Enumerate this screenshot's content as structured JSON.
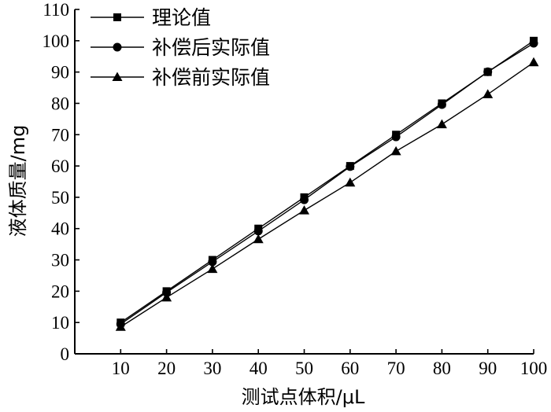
{
  "chart_data": {
    "type": "line",
    "x": [
      10,
      20,
      30,
      40,
      50,
      60,
      70,
      80,
      90,
      100
    ],
    "xlabel": "测试点体积/μL",
    "ylabel": "液体质量/mg",
    "xlim": [
      0,
      100
    ],
    "ylim": [
      0,
      110
    ],
    "xticks": [
      10,
      20,
      30,
      40,
      50,
      60,
      70,
      80,
      90,
      100
    ],
    "yticks": [
      0,
      10,
      20,
      30,
      40,
      50,
      60,
      70,
      80,
      90,
      100,
      110
    ],
    "grid": false,
    "legend_position": "top-left",
    "series": [
      {
        "name": "理论值",
        "marker": "square",
        "color": "#000000",
        "values": [
          10,
          20,
          30,
          40,
          50,
          60,
          70,
          80,
          90,
          100
        ]
      },
      {
        "name": "补偿后实际值",
        "marker": "circle",
        "color": "#000000",
        "values": [
          9.5,
          19.6,
          29.4,
          39.2,
          49.2,
          59.8,
          69.3,
          79.6,
          90.1,
          99.2
        ]
      },
      {
        "name": "补偿前实际值",
        "marker": "triangle",
        "color": "#000000",
        "values": [
          8.6,
          18.0,
          27.1,
          36.6,
          45.8,
          54.7,
          64.7,
          73.3,
          82.9,
          93.1
        ]
      }
    ]
  }
}
